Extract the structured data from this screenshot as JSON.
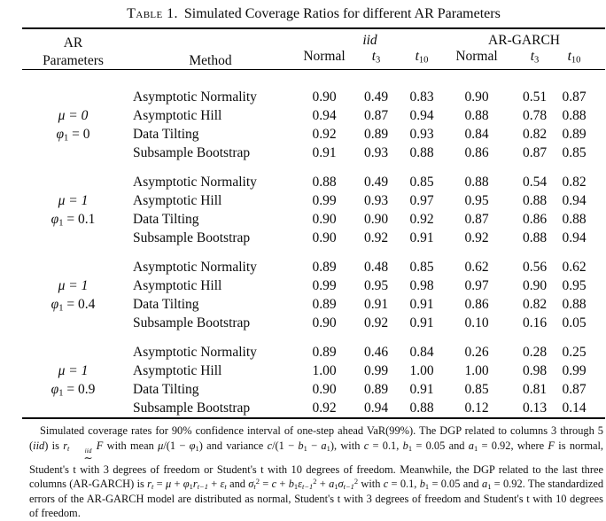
{
  "title": {
    "tag": "Table 1.",
    "caption": "Simulated Coverage Ratios for different AR Parameters"
  },
  "header": {
    "col1_line1": "AR",
    "col1_line2": "Parameters",
    "method": "Method",
    "group_iid": "iid",
    "group_argarch": "AR-GARCH",
    "normal": "Normal",
    "t_base": "t",
    "t3_sub": "3",
    "t10_sub": "10"
  },
  "blocks": [
    {
      "param_mu": "μ = 0",
      "param_phi_base": "φ",
      "param_phi_sub": "1",
      "param_phi_rest": " = 0",
      "rows": [
        {
          "method": "Asymptotic Normality",
          "values": [
            "0.90",
            "0.49",
            "0.83",
            "0.90",
            "0.51",
            "0.87"
          ]
        },
        {
          "method": "Asymptotic Hill",
          "values": [
            "0.94",
            "0.87",
            "0.94",
            "0.88",
            "0.78",
            "0.88"
          ]
        },
        {
          "method": "Data Tilting",
          "values": [
            "0.92",
            "0.89",
            "0.93",
            "0.84",
            "0.82",
            "0.89"
          ]
        },
        {
          "method": "Subsample Bootstrap",
          "values": [
            "0.91",
            "0.93",
            "0.88",
            "0.86",
            "0.87",
            "0.85"
          ]
        }
      ]
    },
    {
      "param_mu": "μ = 1",
      "param_phi_base": "φ",
      "param_phi_sub": "1",
      "param_phi_rest": " = 0.1",
      "rows": [
        {
          "method": "Asymptotic Normality",
          "values": [
            "0.88",
            "0.49",
            "0.85",
            "0.88",
            "0.54",
            "0.82"
          ]
        },
        {
          "method": "Asymptotic Hill",
          "values": [
            "0.99",
            "0.93",
            "0.97",
            "0.95",
            "0.88",
            "0.94"
          ]
        },
        {
          "method": "Data Tilting",
          "values": [
            "0.90",
            "0.90",
            "0.92",
            "0.87",
            "0.86",
            "0.88"
          ]
        },
        {
          "method": "Subsample Bootstrap",
          "values": [
            "0.90",
            "0.92",
            "0.91",
            "0.92",
            "0.88",
            "0.94"
          ]
        }
      ]
    },
    {
      "param_mu": "μ = 1",
      "param_phi_base": "φ",
      "param_phi_sub": "1",
      "param_phi_rest": " = 0.4",
      "rows": [
        {
          "method": "Asymptotic Normality",
          "values": [
            "0.89",
            "0.48",
            "0.85",
            "0.62",
            "0.56",
            "0.62"
          ]
        },
        {
          "method": "Asymptotic Hill",
          "values": [
            "0.99",
            "0.95",
            "0.98",
            "0.97",
            "0.90",
            "0.95"
          ]
        },
        {
          "method": "Data Tilting",
          "values": [
            "0.89",
            "0.91",
            "0.91",
            "0.86",
            "0.82",
            "0.88"
          ]
        },
        {
          "method": "Subsample Bootstrap",
          "values": [
            "0.90",
            "0.92",
            "0.91",
            "0.10",
            "0.16",
            "0.05"
          ]
        }
      ]
    },
    {
      "param_mu": "μ = 1",
      "param_phi_base": "φ",
      "param_phi_sub": "1",
      "param_phi_rest": " = 0.9",
      "rows": [
        {
          "method": "Asymptotic Normality",
          "values": [
            "0.89",
            "0.46",
            "0.84",
            "0.26",
            "0.28",
            "0.25"
          ]
        },
        {
          "method": "Asymptotic Hill",
          "values": [
            "1.00",
            "0.99",
            "1.00",
            "1.00",
            "0.98",
            "0.99"
          ]
        },
        {
          "method": "Data Tilting",
          "values": [
            "0.90",
            "0.89",
            "0.91",
            "0.85",
            "0.81",
            "0.87"
          ]
        },
        {
          "method": "Subsample Bootstrap",
          "values": [
            "0.92",
            "0.94",
            "0.88",
            "0.12",
            "0.13",
            "0.14"
          ]
        }
      ]
    }
  ],
  "footnote": {
    "segments": [
      {
        "s": "n",
        "t": "Simulated coverage rates for 90% confidence interval of one-step ahead VaR(99%). The DGP related to columns 3 through 5 ("
      },
      {
        "s": "i",
        "t": "iid"
      },
      {
        "s": "n",
        "t": ") is "
      },
      {
        "s": "i",
        "t": "r"
      },
      {
        "s": "isub",
        "t": "t"
      },
      {
        "s": "stack",
        "top": "iid",
        "bot": "∼"
      },
      {
        "s": "i",
        "t": "F"
      },
      {
        "s": "n",
        "t": " with mean "
      },
      {
        "s": "i",
        "t": "μ"
      },
      {
        "s": "n",
        "t": "/(1 − "
      },
      {
        "s": "i",
        "t": "φ"
      },
      {
        "s": "sub",
        "t": "1"
      },
      {
        "s": "n",
        "t": ") and variance "
      },
      {
        "s": "i",
        "t": "c"
      },
      {
        "s": "n",
        "t": "/(1 − "
      },
      {
        "s": "i",
        "t": "b"
      },
      {
        "s": "sub",
        "t": "1"
      },
      {
        "s": "n",
        "t": " − "
      },
      {
        "s": "i",
        "t": "a"
      },
      {
        "s": "sub",
        "t": "1"
      },
      {
        "s": "n",
        "t": "), with "
      },
      {
        "s": "i",
        "t": "c"
      },
      {
        "s": "n",
        "t": " = 0.1, "
      },
      {
        "s": "i",
        "t": "b"
      },
      {
        "s": "sub",
        "t": "1"
      },
      {
        "s": "n",
        "t": " = 0.05 and "
      },
      {
        "s": "i",
        "t": "a"
      },
      {
        "s": "sub",
        "t": "1"
      },
      {
        "s": "n",
        "t": " = 0.92, where "
      },
      {
        "s": "i",
        "t": "F"
      },
      {
        "s": "n",
        "t": " is normal, Student's t with 3 degrees of freedom or Student's t with 10 degrees of freedom. Meanwhile, the DGP related to the last three columns (AR-GARCH) is "
      },
      {
        "s": "i",
        "t": "r"
      },
      {
        "s": "isub",
        "t": "t"
      },
      {
        "s": "n",
        "t": " = "
      },
      {
        "s": "i",
        "t": "μ"
      },
      {
        "s": "n",
        "t": " + "
      },
      {
        "s": "i",
        "t": "φ"
      },
      {
        "s": "sub",
        "t": "1"
      },
      {
        "s": "i",
        "t": "r"
      },
      {
        "s": "isub",
        "t": "t−1"
      },
      {
        "s": "n",
        "t": " + "
      },
      {
        "s": "i",
        "t": "ε"
      },
      {
        "s": "isub",
        "t": "t"
      },
      {
        "s": "n",
        "t": " and "
      },
      {
        "s": "i",
        "t": "σ"
      },
      {
        "s": "isub",
        "t": "t"
      },
      {
        "s": "sup",
        "t": "2"
      },
      {
        "s": "n",
        "t": " = "
      },
      {
        "s": "i",
        "t": "c"
      },
      {
        "s": "n",
        "t": " + "
      },
      {
        "s": "i",
        "t": "b"
      },
      {
        "s": "sub",
        "t": "1"
      },
      {
        "s": "i",
        "t": "ε"
      },
      {
        "s": "isub",
        "t": "t−1"
      },
      {
        "s": "sup",
        "t": "2"
      },
      {
        "s": "n",
        "t": " + "
      },
      {
        "s": "i",
        "t": "a"
      },
      {
        "s": "sub",
        "t": "1"
      },
      {
        "s": "i",
        "t": "σ"
      },
      {
        "s": "isub",
        "t": "t−1"
      },
      {
        "s": "sup",
        "t": "2"
      },
      {
        "s": "n",
        "t": " with "
      },
      {
        "s": "i",
        "t": "c"
      },
      {
        "s": "n",
        "t": " = 0.1, "
      },
      {
        "s": "i",
        "t": "b"
      },
      {
        "s": "sub",
        "t": "1"
      },
      {
        "s": "n",
        "t": " = 0.05 and "
      },
      {
        "s": "i",
        "t": "a"
      },
      {
        "s": "sub",
        "t": "1"
      },
      {
        "s": "n",
        "t": " = 0.92. The standardized errors of the AR-GARCH model are distributed as normal, Student's t with 3 degrees of freedom and Student's t with 10 degrees of freedom."
      }
    ]
  }
}
